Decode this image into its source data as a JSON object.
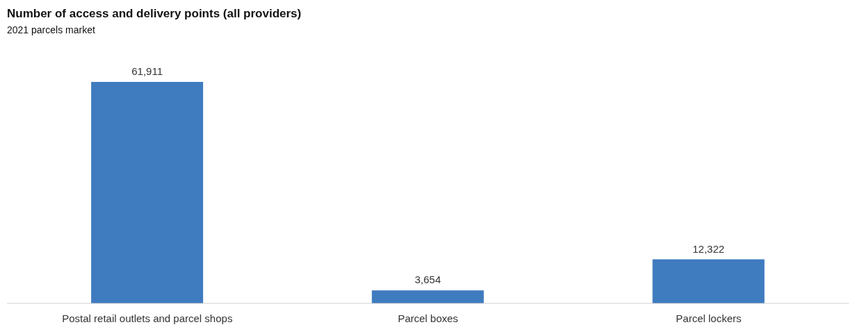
{
  "chart_data": {
    "type": "bar",
    "title": "Number of access and delivery points (all providers)",
    "subtitle": "2021 parcels market",
    "categories": [
      "Postal retail outlets and parcel shops",
      "Parcel boxes",
      "Parcel lockers"
    ],
    "values": [
      61911,
      3654,
      12322
    ],
    "value_labels": [
      "61,911",
      "3,654",
      "12,322"
    ],
    "color": "#3f7bbf",
    "grid": false,
    "legend": false
  }
}
